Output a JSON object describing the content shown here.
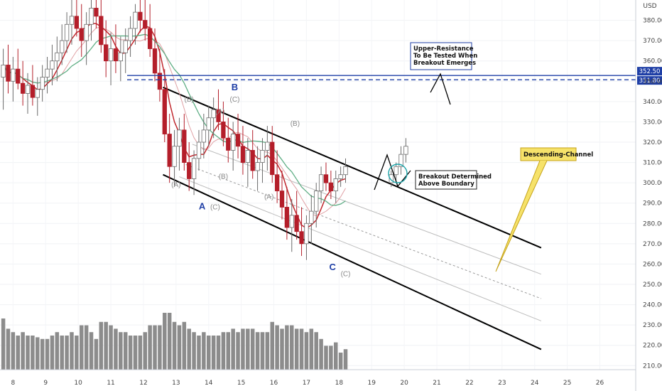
{
  "chart_data": {
    "type": "candlestick",
    "currency": "USD",
    "y_ticks": [
      380,
      370,
      360,
      350,
      340,
      330,
      320,
      310,
      300,
      290,
      280,
      270,
      260,
      250,
      240,
      230,
      220,
      210
    ],
    "x_ticks": [
      "8",
      "9",
      "10",
      "11",
      "12",
      "13",
      "14",
      "15",
      "16",
      "17",
      "18",
      "19",
      "20",
      "21",
      "22",
      "23",
      "24",
      "25",
      "26"
    ],
    "ylim": [
      208,
      390
    ],
    "xlim": [
      7.6,
      27.1
    ],
    "price_badges": [
      {
        "label": "352.50",
        "color": "#1f3fa6"
      },
      {
        "label": "351.80",
        "color": "#1f3fa6"
      }
    ],
    "resistance_level": 351.8,
    "annotations": [
      {
        "id": "upper-resistance-note",
        "lines": [
          "Upper-Resistance",
          "To Be Tested When",
          "Breakout Emerges"
        ]
      },
      {
        "id": "breakout-note",
        "lines": [
          "Breakout Determined",
          "Above Boundary"
        ]
      },
      {
        "id": "channel-callout",
        "lines": [
          "Descending-Channel"
        ]
      }
    ],
    "wave_labels": [
      {
        "text": "B",
        "x": 14.8,
        "y": 345.5,
        "main": true
      },
      {
        "text": "A",
        "x": 13.8,
        "y": 287,
        "main": true
      },
      {
        "text": "C",
        "x": 17.8,
        "y": 257,
        "main": true
      },
      {
        "text": "(C)",
        "x": 14.8,
        "y": 340,
        "main": false
      },
      {
        "text": "(A)",
        "x": 14.35,
        "y": 334,
        "main": false
      },
      {
        "text": "(B)",
        "x": 13.4,
        "y": 340,
        "main": false
      },
      {
        "text": "(A)",
        "x": 13.0,
        "y": 298,
        "main": false
      },
      {
        "text": "(B)",
        "x": 14.45,
        "y": 302,
        "main": false
      },
      {
        "text": "(C)",
        "x": 14.2,
        "y": 287,
        "main": false
      },
      {
        "text": "(B)",
        "x": 16.65,
        "y": 328,
        "main": false
      },
      {
        "text": "(A)",
        "x": 15.85,
        "y": 292,
        "main": false
      },
      {
        "text": "(C)",
        "x": 18.2,
        "y": 254,
        "main": false
      }
    ],
    "channel": {
      "upper": [
        [
          12.6,
          347
        ],
        [
          24.2,
          268
        ]
      ],
      "lower": [
        [
          12.6,
          304
        ],
        [
          24.2,
          218
        ]
      ],
      "mid_lines": [
        [
          [
            13.5,
            319
          ],
          [
            24.2,
            255
          ]
        ],
        [
          [
            13.3,
            309
          ],
          [
            24.2,
            243
          ]
        ],
        [
          [
            13.1,
            303
          ],
          [
            24.2,
            232
          ]
        ]
      ]
    },
    "candles": [
      [
        7.7,
        352,
        366,
        336,
        358
      ],
      [
        7.85,
        358,
        368,
        344,
        350
      ],
      [
        8.0,
        350,
        362,
        340,
        356
      ],
      [
        8.15,
        356,
        366,
        346,
        349
      ],
      [
        8.3,
        349,
        360,
        338,
        344
      ],
      [
        8.45,
        344,
        354,
        334,
        348
      ],
      [
        8.6,
        348,
        358,
        338,
        342
      ],
      [
        8.75,
        342,
        352,
        333,
        346
      ],
      [
        8.9,
        346,
        358,
        340,
        352
      ],
      [
        9.05,
        352,
        362,
        344,
        356
      ],
      [
        9.2,
        356,
        368,
        348,
        360
      ],
      [
        9.35,
        360,
        372,
        350,
        364
      ],
      [
        9.5,
        364,
        378,
        358,
        370
      ],
      [
        9.65,
        370,
        384,
        364,
        378
      ],
      [
        9.8,
        378,
        390,
        368,
        382
      ],
      [
        9.95,
        382,
        392,
        372,
        376
      ],
      [
        10.1,
        376,
        388,
        362,
        370
      ],
      [
        10.25,
        370,
        384,
        358,
        378
      ],
      [
        10.4,
        378,
        392,
        370,
        386
      ],
      [
        10.55,
        386,
        394,
        376,
        382
      ],
      [
        10.7,
        382,
        392,
        364,
        368
      ],
      [
        10.85,
        368,
        380,
        352,
        360
      ],
      [
        11.0,
        360,
        374,
        348,
        366
      ],
      [
        11.15,
        366,
        378,
        354,
        360
      ],
      [
        11.3,
        360,
        372,
        350,
        364
      ],
      [
        11.45,
        364,
        376,
        354,
        370
      ],
      [
        11.6,
        370,
        382,
        362,
        376
      ],
      [
        11.75,
        376,
        388,
        368,
        384
      ],
      [
        11.9,
        384,
        394,
        374,
        380
      ],
      [
        12.05,
        380,
        392,
        370,
        376
      ],
      [
        12.2,
        376,
        388,
        362,
        366
      ],
      [
        12.35,
        366,
        376,
        350,
        354
      ],
      [
        12.5,
        354,
        366,
        340,
        346
      ],
      [
        12.65,
        346,
        356,
        320,
        324
      ],
      [
        12.8,
        324,
        334,
        300,
        308
      ],
      [
        12.95,
        308,
        326,
        298,
        318
      ],
      [
        13.1,
        318,
        332,
        306,
        326
      ],
      [
        13.25,
        326,
        334,
        306,
        310
      ],
      [
        13.4,
        310,
        320,
        296,
        302
      ],
      [
        13.55,
        302,
        316,
        294,
        312
      ],
      [
        13.7,
        312,
        326,
        306,
        320
      ],
      [
        13.85,
        320,
        334,
        312,
        326
      ],
      [
        14.0,
        326,
        338,
        318,
        332
      ],
      [
        14.15,
        332,
        342,
        322,
        336
      ],
      [
        14.3,
        336,
        346,
        326,
        330
      ],
      [
        14.45,
        330,
        340,
        318,
        322
      ],
      [
        14.6,
        322,
        332,
        310,
        316
      ],
      [
        14.75,
        316,
        330,
        306,
        324
      ],
      [
        14.9,
        324,
        334,
        312,
        318
      ],
      [
        15.05,
        318,
        328,
        304,
        310
      ],
      [
        15.2,
        310,
        322,
        298,
        316
      ],
      [
        15.35,
        316,
        326,
        302,
        306
      ],
      [
        15.5,
        306,
        318,
        296,
        310
      ],
      [
        15.65,
        310,
        322,
        300,
        316
      ],
      [
        15.8,
        316,
        328,
        306,
        320
      ],
      [
        15.95,
        320,
        328,
        300,
        304
      ],
      [
        16.1,
        304,
        316,
        290,
        296
      ],
      [
        16.25,
        296,
        306,
        282,
        288
      ],
      [
        16.4,
        288,
        298,
        272,
        278
      ],
      [
        16.55,
        278,
        292,
        266,
        284
      ],
      [
        16.7,
        284,
        296,
        272,
        276
      ],
      [
        16.85,
        276,
        288,
        264,
        270
      ],
      [
        17.0,
        270,
        284,
        262,
        280
      ],
      [
        17.15,
        280,
        294,
        270,
        286
      ],
      [
        17.3,
        286,
        300,
        278,
        296
      ],
      [
        17.45,
        296,
        308,
        290,
        304
      ],
      [
        17.6,
        304,
        310,
        296,
        300
      ],
      [
        17.75,
        300,
        306,
        292,
        296
      ],
      [
        17.9,
        296,
        306,
        290,
        302
      ],
      [
        18.05,
        302,
        308,
        298,
        304
      ],
      [
        18.2,
        304,
        312,
        300,
        308
      ],
      [
        19.6,
        300,
        306,
        298,
        304
      ],
      [
        19.75,
        304,
        310,
        300,
        308
      ],
      [
        19.9,
        308,
        318,
        304,
        314
      ],
      [
        20.05,
        314,
        322,
        310,
        318
      ]
    ],
    "volume_max": 100
  }
}
